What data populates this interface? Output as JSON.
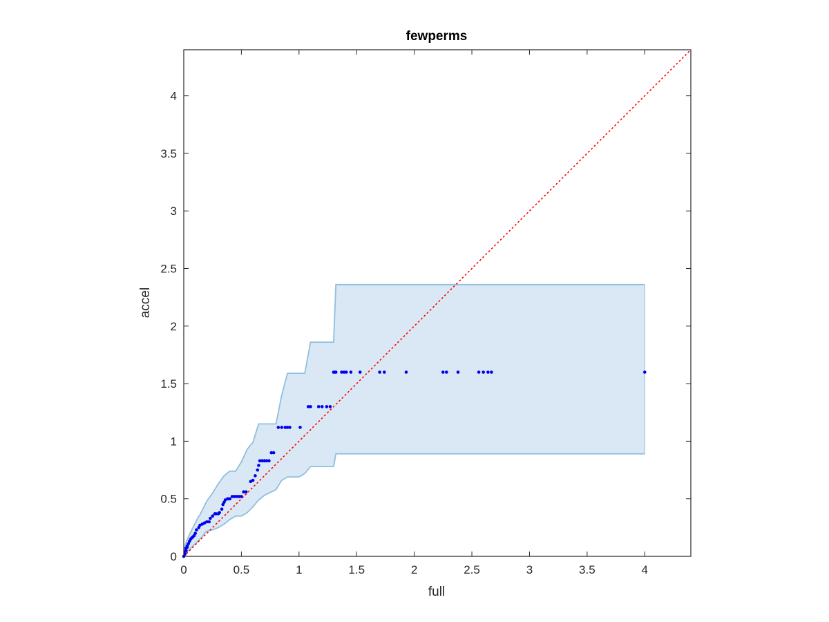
{
  "chart_data": {
    "type": "scatter",
    "title": "fewperms",
    "xlabel": "full",
    "ylabel": "accel",
    "xlim": [
      0,
      4.4
    ],
    "ylim": [
      0,
      4.4
    ],
    "xticks": [
      0,
      0.5,
      1,
      1.5,
      2,
      2.5,
      3,
      3.5,
      4
    ],
    "xtick_labels": [
      "0",
      "0.5",
      "1",
      "1.5",
      "2",
      "2.5",
      "3",
      "3.5",
      "4"
    ],
    "yticks": [
      0,
      0.5,
      1,
      1.5,
      2,
      2.5,
      3,
      3.5,
      4
    ],
    "ytick_labels": [
      "0",
      "0.5",
      "1",
      "1.5",
      "2",
      "2.5",
      "3",
      "3.5",
      "4"
    ],
    "grid": false,
    "reference_line": {
      "style": "dotted",
      "color": "#ff0000",
      "x": [
        0,
        4.4
      ],
      "y": [
        0,
        4.4
      ]
    },
    "band": {
      "fill_color": "#d9e8f4",
      "edge_color": "#8fbfdd",
      "x": [
        0,
        0.01,
        0.02,
        0.04,
        0.06,
        0.08,
        0.1,
        0.12,
        0.14,
        0.16,
        0.18,
        0.2,
        0.25,
        0.3,
        0.35,
        0.4,
        0.45,
        0.5,
        0.55,
        0.6,
        0.65,
        0.7,
        0.8,
        0.85,
        0.9,
        1.0,
        1.05,
        1.1,
        1.2,
        1.28,
        1.3,
        1.32,
        1.5,
        2.0,
        3.0,
        4.0
      ],
      "upper": [
        0,
        0.08,
        0.12,
        0.17,
        0.21,
        0.25,
        0.29,
        0.33,
        0.36,
        0.4,
        0.44,
        0.48,
        0.55,
        0.63,
        0.7,
        0.74,
        0.74,
        0.82,
        0.93,
        0.99,
        1.15,
        1.15,
        1.15,
        1.4,
        1.59,
        1.59,
        1.59,
        1.86,
        1.86,
        1.86,
        1.86,
        2.36,
        2.36,
        2.36,
        2.36,
        2.36
      ],
      "lower": [
        0,
        0.01,
        0.03,
        0.05,
        0.07,
        0.09,
        0.11,
        0.13,
        0.15,
        0.17,
        0.2,
        0.22,
        0.23,
        0.25,
        0.28,
        0.32,
        0.35,
        0.35,
        0.38,
        0.43,
        0.49,
        0.53,
        0.58,
        0.66,
        0.69,
        0.69,
        0.72,
        0.78,
        0.78,
        0.78,
        0.78,
        0.89,
        0.89,
        0.89,
        0.89,
        0.89
      ]
    },
    "series": [
      {
        "marker_color": "#0000ee",
        "x": [
          0,
          0.01,
          0.01,
          0.02,
          0.02,
          0.03,
          0.03,
          0.04,
          0.05,
          0.06,
          0.07,
          0.08,
          0.09,
          0.1,
          0.11,
          0.13,
          0.14,
          0.16,
          0.18,
          0.2,
          0.22,
          0.23,
          0.25,
          0.27,
          0.28,
          0.3,
          0.31,
          0.33,
          0.34,
          0.35,
          0.36,
          0.38,
          0.4,
          0.42,
          0.44,
          0.46,
          0.48,
          0.5,
          0.52,
          0.54,
          0.58,
          0.6,
          0.62,
          0.64,
          0.65,
          0.66,
          0.68,
          0.7,
          0.72,
          0.74,
          0.76,
          0.78,
          0.82,
          0.85,
          0.88,
          0.9,
          0.92,
          1.01,
          1.08,
          1.1,
          1.17,
          1.2,
          1.24,
          1.27,
          1.3,
          1.31,
          1.32,
          1.37,
          1.39,
          1.41,
          1.45,
          1.53,
          1.7,
          1.74,
          1.93,
          2.25,
          2.28,
          2.38,
          2.56,
          2.6,
          2.64,
          2.67,
          4.0
        ],
        "y": [
          0,
          0.02,
          0.04,
          0.05,
          0.07,
          0.08,
          0.09,
          0.11,
          0.13,
          0.15,
          0.16,
          0.17,
          0.18,
          0.2,
          0.23,
          0.25,
          0.27,
          0.28,
          0.29,
          0.3,
          0.3,
          0.33,
          0.35,
          0.37,
          0.37,
          0.37,
          0.38,
          0.41,
          0.45,
          0.47,
          0.49,
          0.5,
          0.5,
          0.52,
          0.52,
          0.52,
          0.52,
          0.52,
          0.56,
          0.56,
          0.65,
          0.66,
          0.7,
          0.75,
          0.79,
          0.83,
          0.83,
          0.83,
          0.83,
          0.83,
          0.9,
          0.9,
          1.12,
          1.12,
          1.12,
          1.12,
          1.12,
          1.12,
          1.3,
          1.3,
          1.3,
          1.3,
          1.3,
          1.3,
          1.6,
          1.6,
          1.6,
          1.6,
          1.6,
          1.6,
          1.6,
          1.6,
          1.6,
          1.6,
          1.6,
          1.6,
          1.6,
          1.6,
          1.6,
          1.6,
          1.6,
          1.6,
          1.6
        ]
      }
    ]
  }
}
